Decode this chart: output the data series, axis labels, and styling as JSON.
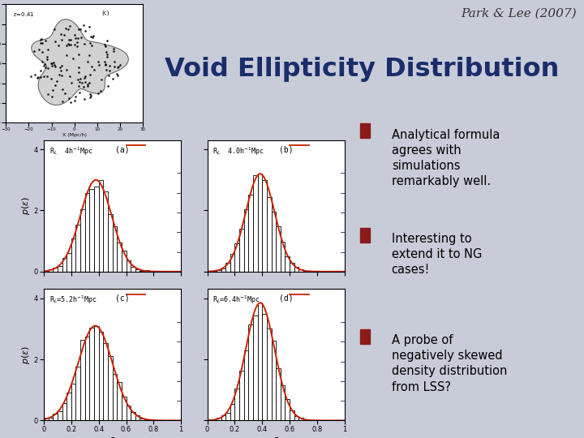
{
  "title_text": "Park & Lee (2007)",
  "main_title": "Void Ellipticity Distribution",
  "main_title_color": "#1a2d6b",
  "slide_bg": "#c8ccd8",
  "bullet_points": [
    "Analytical formula\nagrees with\nsimulations\nremarkably well.",
    "Interesting to\nextend it to NG\ncases!",
    "A probe of\nnegatively skewed\ndensity distribution\nfrom LSS?"
  ],
  "bullet_marker_color": "#8b1a1a",
  "panel_labels": [
    "(a)",
    "(b)",
    "(c)",
    "(d)"
  ],
  "panel_titles": [
    "R$_L$  4h$^{-1}$Mpc",
    "R$_L$  4.0h$^{-1}$Mpc",
    "R$_L$=5.2h$^{-1}$Mpc",
    "R$_L$=6.4h$^{-1}$Mpc"
  ],
  "hist_color": "#000000",
  "curve_color": "#cc2200",
  "dist_params": [
    {
      "mu": 0.38,
      "sigma": 0.115,
      "scale": 3.0
    },
    {
      "mu": 0.385,
      "sigma": 0.105,
      "scale": 3.2
    },
    {
      "mu": 0.375,
      "sigma": 0.125,
      "scale": 3.1
    },
    {
      "mu": 0.385,
      "sigma": 0.105,
      "scale": 3.85
    }
  ],
  "divider_color": "#8899bb",
  "xtick_labels_bottom": [
    "0",
    "0.2",
    "0.4",
    "0.6",
    "0.8",
    "1"
  ],
  "xtick_second_row": [
    "0.2",
    "0.4",
    "0.6",
    "0.8"
  ]
}
